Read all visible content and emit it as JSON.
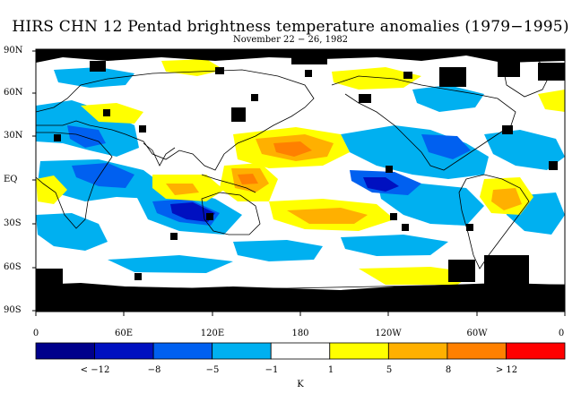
{
  "title": "HIRS CHN 12 Pentad brightness temperature anomalies (1979−1995)",
  "subtitle": "November 22 − 26, 1982",
  "map": {
    "lat_labels": [
      "90N",
      "60N",
      "30N",
      "EQ",
      "30S",
      "60S",
      "90S"
    ],
    "lon_labels": [
      "0",
      "60E",
      "120E",
      "180",
      "120W",
      "60W",
      "0"
    ]
  },
  "colorbar": {
    "colors": [
      "#00008b",
      "#0010c0",
      "#0060f0",
      "#00b0f0",
      "#ffffff",
      "#ffff00",
      "#ffb000",
      "#ff8000",
      "#ff0000"
    ],
    "tick_labels": [
      "< −12",
      "−8",
      "−5",
      "−1",
      "1",
      "5",
      "8",
      "> 12"
    ],
    "unit": "K"
  },
  "colors": {
    "missing_data": "#000000",
    "coastline": "#000000"
  }
}
